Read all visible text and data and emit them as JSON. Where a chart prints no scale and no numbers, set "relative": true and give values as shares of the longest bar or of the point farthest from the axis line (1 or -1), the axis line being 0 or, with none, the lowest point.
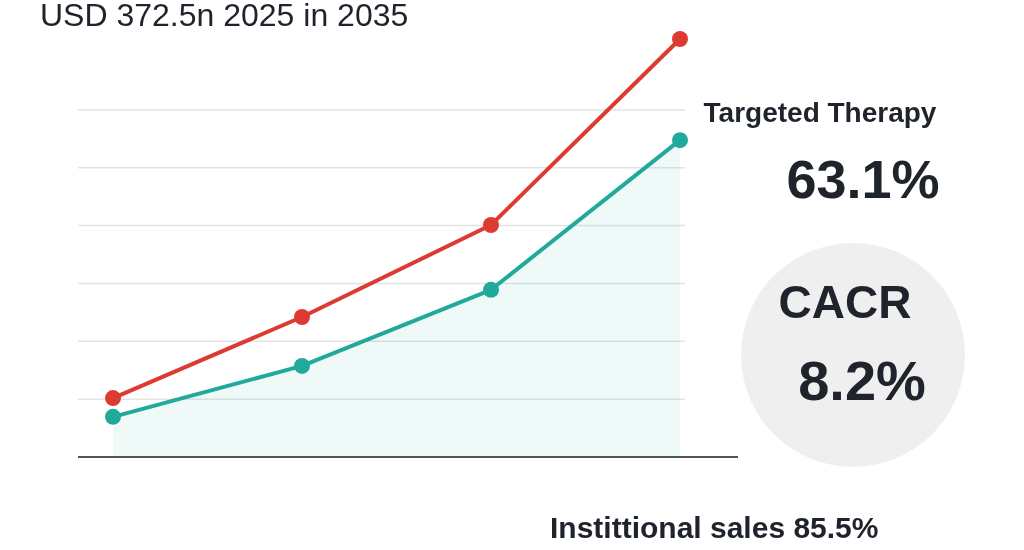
{
  "chart_data": {
    "type": "line",
    "title": "USD 372.5n 2025 in 2035",
    "categories": [
      null,
      null,
      null,
      null
    ],
    "relative": true,
    "series": [
      {
        "color": "#dd3b31",
        "values": [
          0.141,
          0.335,
          0.555,
          1
        ]
      },
      {
        "type": "area",
        "color": "#21a99c",
        "values": [
          0.096,
          0.218,
          0.4,
          0.758
        ]
      }
    ],
    "marker": "circle",
    "grid": "y",
    "annotations": [
      "Targeted Therapy",
      "63.1%",
      "CACR",
      "8.2%",
      "Instittional sales 85.5%"
    ]
  }
}
